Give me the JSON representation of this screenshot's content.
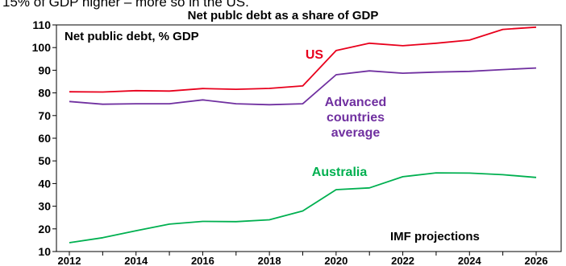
{
  "page": {
    "clipped_text": "15% of GDP higher – more so in the US."
  },
  "chart_data": {
    "type": "line",
    "title": "Net publc debt as a share of GDP",
    "inner_label": "Net public debt, % GDP",
    "annotation": "IMF projections",
    "x": [
      2012,
      2013,
      2014,
      2015,
      2016,
      2017,
      2018,
      2019,
      2020,
      2021,
      2022,
      2023,
      2024,
      2025,
      2026
    ],
    "xticks": [
      "2012",
      "2014",
      "2016",
      "2018",
      "2020",
      "2022",
      "2024",
      "2026"
    ],
    "xlim": [
      2012,
      2026
    ],
    "ylim": [
      10,
      110
    ],
    "yticks": [
      10,
      20,
      30,
      40,
      50,
      60,
      70,
      80,
      90,
      100,
      110
    ],
    "grid": false,
    "series": [
      {
        "name": "US",
        "color": "#e8001c",
        "values": [
          80.5,
          80.4,
          81.0,
          80.8,
          81.9,
          81.6,
          82.0,
          83.1,
          98.7,
          101.9,
          100.8,
          101.9,
          103.3,
          108.0,
          109.0
        ]
      },
      {
        "name": "Advanced countries average",
        "label_lines": [
          "Advanced",
          "countries",
          "average"
        ],
        "color": "#7030a0",
        "values": [
          76.2,
          75.0,
          75.2,
          75.2,
          76.9,
          75.2,
          74.8,
          75.2,
          88.0,
          89.7,
          88.7,
          89.2,
          89.5,
          90.3,
          91.0
        ]
      },
      {
        "name": "Australia",
        "color": "#00b050",
        "values": [
          13.9,
          16.1,
          19.2,
          22.1,
          23.3,
          23.2,
          24.0,
          27.9,
          37.3,
          38.1,
          43.0,
          44.7,
          44.6,
          43.9,
          42.7
        ]
      }
    ]
  }
}
